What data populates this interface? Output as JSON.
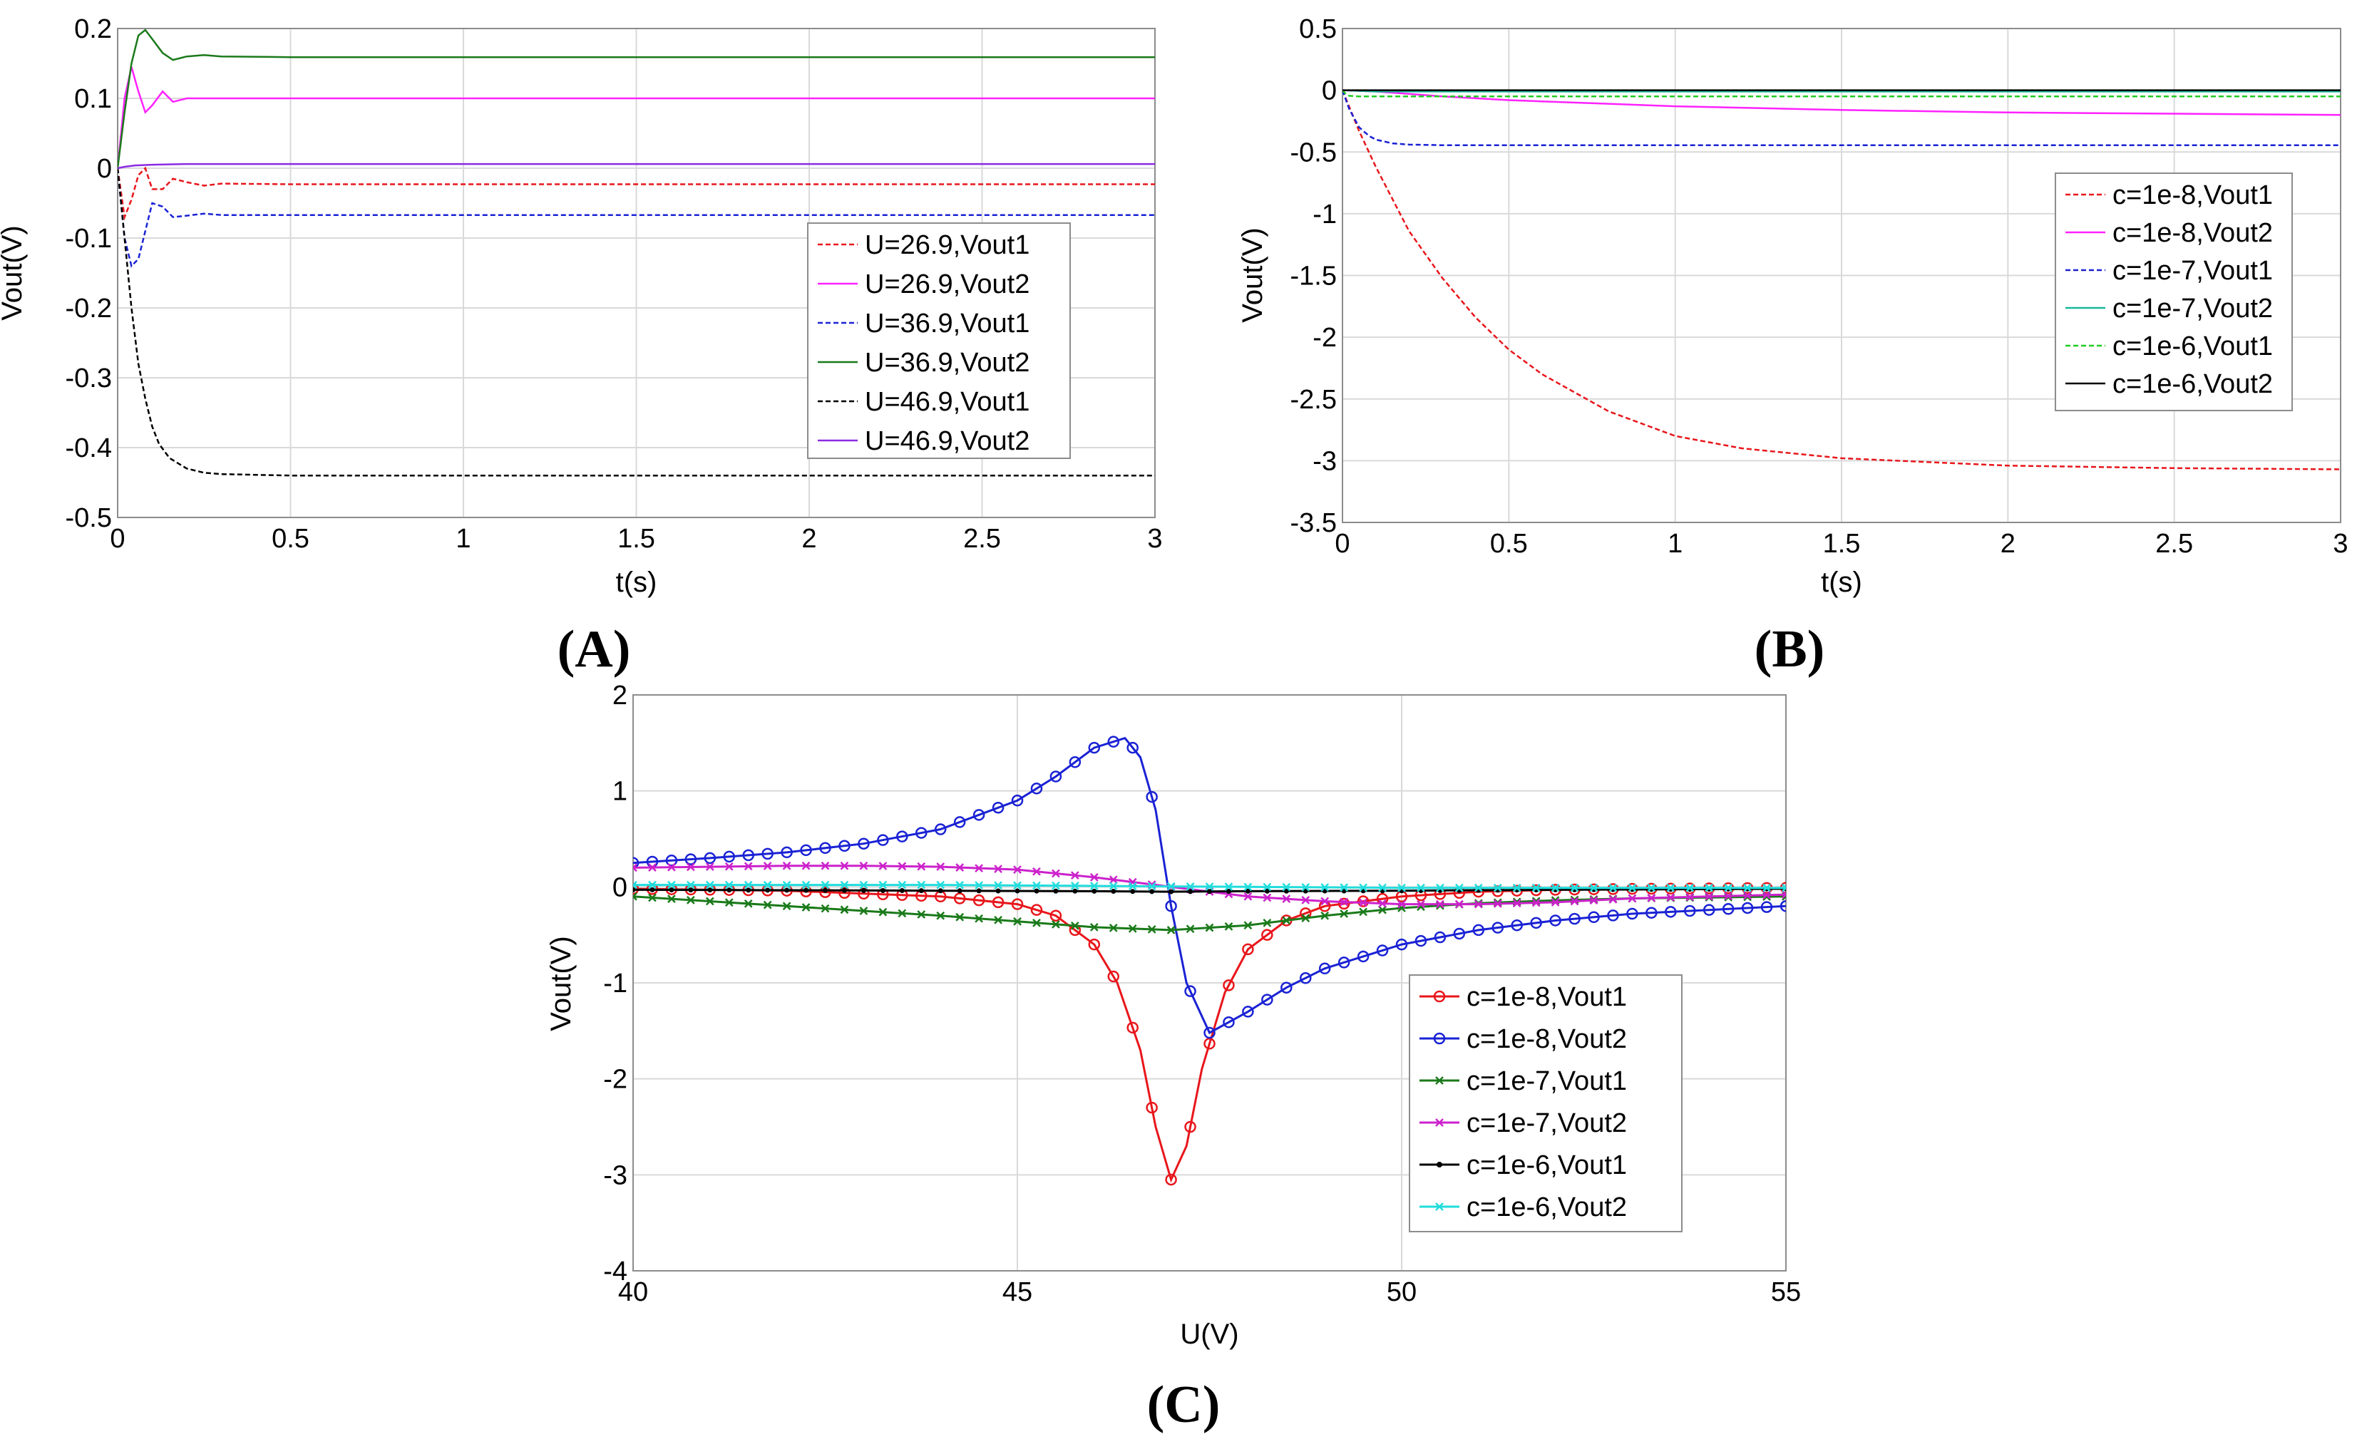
{
  "chart_data": [
    {
      "panel": "A",
      "type": "line",
      "xlabel": "t(s)",
      "ylabel": "Vout(V)",
      "xlim": [
        0,
        3
      ],
      "ylim": [
        -0.5,
        0.2
      ],
      "xticks": [
        0,
        0.5,
        1,
        1.5,
        2,
        2.5,
        3
      ],
      "yticks": [
        -0.5,
        -0.4,
        -0.3,
        -0.2,
        -0.1,
        0,
        0.1,
        0.2
      ],
      "legend_position": "right-center",
      "series": [
        {
          "name": "U=26.9,Vout1",
          "color": "#e8161b",
          "style": "dashed",
          "x": [
            0,
            0.02,
            0.04,
            0.06,
            0.08,
            0.1,
            0.13,
            0.16,
            0.2,
            0.25,
            0.3,
            0.5,
            1,
            2,
            3
          ],
          "y": [
            0,
            -0.07,
            -0.045,
            -0.01,
            0.0,
            -0.03,
            -0.03,
            -0.015,
            -0.02,
            -0.025,
            -0.022,
            -0.023,
            -0.023,
            -0.023,
            -0.023
          ]
        },
        {
          "name": "U=26.9,Vout2",
          "color": "#ff22ff",
          "style": "solid",
          "x": [
            0,
            0.02,
            0.04,
            0.06,
            0.08,
            0.1,
            0.13,
            0.16,
            0.2,
            0.25,
            0.3,
            0.5,
            1,
            2,
            3
          ],
          "y": [
            0,
            0.1,
            0.145,
            0.11,
            0.08,
            0.09,
            0.11,
            0.095,
            0.1,
            0.1,
            0.1,
            0.1,
            0.1,
            0.1,
            0.1
          ]
        },
        {
          "name": "U=36.9,Vout1",
          "color": "#1a22d4",
          "style": "dashed",
          "x": [
            0,
            0.02,
            0.04,
            0.06,
            0.08,
            0.1,
            0.13,
            0.16,
            0.2,
            0.25,
            0.3,
            0.5,
            1,
            2,
            3
          ],
          "y": [
            0,
            -0.1,
            -0.14,
            -0.13,
            -0.09,
            -0.05,
            -0.055,
            -0.07,
            -0.068,
            -0.065,
            -0.067,
            -0.067,
            -0.067,
            -0.067,
            -0.067
          ]
        },
        {
          "name": "U=36.9,Vout2",
          "color": "#1a7a1a",
          "style": "solid",
          "x": [
            0,
            0.02,
            0.04,
            0.06,
            0.08,
            0.1,
            0.13,
            0.16,
            0.2,
            0.25,
            0.3,
            0.5,
            1,
            2,
            3
          ],
          "y": [
            0,
            0.08,
            0.15,
            0.19,
            0.198,
            0.185,
            0.165,
            0.155,
            0.16,
            0.162,
            0.16,
            0.159,
            0.159,
            0.159,
            0.159
          ]
        },
        {
          "name": "U=46.9,Vout1",
          "color": "#000000",
          "style": "dashed",
          "x": [
            0,
            0.02,
            0.04,
            0.06,
            0.08,
            0.1,
            0.12,
            0.15,
            0.2,
            0.25,
            0.3,
            0.4,
            0.5,
            1,
            2,
            3
          ],
          "y": [
            0,
            -0.1,
            -0.2,
            -0.28,
            -0.33,
            -0.37,
            -0.395,
            -0.415,
            -0.43,
            -0.436,
            -0.438,
            -0.439,
            -0.44,
            -0.44,
            -0.44,
            -0.44
          ]
        },
        {
          "name": "U=46.9,Vout2",
          "color": "#8b2be2",
          "style": "solid",
          "x": [
            0,
            0.02,
            0.05,
            0.1,
            0.2,
            0.3,
            0.5,
            1,
            2,
            3
          ],
          "y": [
            0,
            0.002,
            0.004,
            0.005,
            0.006,
            0.006,
            0.006,
            0.006,
            0.006,
            0.006
          ]
        }
      ]
    },
    {
      "panel": "B",
      "type": "line",
      "xlabel": "t(s)",
      "ylabel": "Vout(V)",
      "xlim": [
        0,
        3
      ],
      "ylim": [
        -3.5,
        0.5
      ],
      "xticks": [
        0,
        0.5,
        1,
        1.5,
        2,
        2.5,
        3
      ],
      "yticks": [
        -3.5,
        -3,
        -2.5,
        -2,
        -1.5,
        -1,
        -0.5,
        0,
        0.5
      ],
      "legend_position": "right-center",
      "series": [
        {
          "name": "c=1e-8,Vout1",
          "color": "#e8161b",
          "style": "dashed",
          "x": [
            0,
            0.05,
            0.1,
            0.2,
            0.3,
            0.4,
            0.5,
            0.6,
            0.8,
            1,
            1.2,
            1.5,
            2,
            2.5,
            3
          ],
          "y": [
            0,
            -0.33,
            -0.62,
            -1.14,
            -1.52,
            -1.84,
            -2.1,
            -2.3,
            -2.6,
            -2.8,
            -2.9,
            -2.98,
            -3.04,
            -3.06,
            -3.07
          ]
        },
        {
          "name": "c=1e-8,Vout2",
          "color": "#ff22ff",
          "style": "solid",
          "x": [
            0,
            0.1,
            0.2,
            0.3,
            0.5,
            1,
            1.5,
            2,
            2.5,
            3
          ],
          "y": [
            0,
            -0.01,
            -0.03,
            -0.05,
            -0.08,
            -0.13,
            -0.16,
            -0.18,
            -0.19,
            -0.2
          ]
        },
        {
          "name": "c=1e-7,Vout1",
          "color": "#1a22d4",
          "style": "dashed",
          "x": [
            0,
            0.02,
            0.05,
            0.08,
            0.1,
            0.15,
            0.2,
            0.3,
            0.5,
            1,
            2,
            3
          ],
          "y": [
            0,
            -0.15,
            -0.3,
            -0.37,
            -0.4,
            -0.43,
            -0.44,
            -0.445,
            -0.445,
            -0.445,
            -0.445,
            -0.445
          ]
        },
        {
          "name": "c=1e-7,Vout2",
          "color": "#18b89a",
          "style": "solid",
          "x": [
            0,
            0.1,
            0.3,
            0.5,
            1,
            2,
            3
          ],
          "y": [
            0,
            -0.01,
            -0.01,
            -0.01,
            -0.01,
            -0.01,
            -0.01
          ]
        },
        {
          "name": "c=1e-6,Vout1",
          "color": "#22cc22",
          "style": "dashed",
          "x": [
            0,
            0.01,
            0.02,
            0.05,
            0.1,
            0.5,
            1,
            2,
            3
          ],
          "y": [
            0,
            -0.03,
            -0.045,
            -0.05,
            -0.05,
            -0.05,
            -0.05,
            -0.05,
            -0.05
          ]
        },
        {
          "name": "c=1e-6,Vout2",
          "color": "#000000",
          "style": "solid",
          "x": [
            0,
            0.5,
            1,
            2,
            3
          ],
          "y": [
            0,
            0,
            0,
            0,
            0
          ]
        }
      ]
    },
    {
      "panel": "C",
      "type": "line",
      "xlabel": "U(V)",
      "ylabel": "Vout(V)",
      "xlim": [
        40,
        55
      ],
      "ylim": [
        -4,
        2
      ],
      "xticks": [
        40,
        45,
        50,
        55
      ],
      "yticks": [
        -4,
        -3,
        -2,
        -1,
        0,
        1,
        2
      ],
      "legend_position": "right-bottom",
      "series": [
        {
          "name": "c=1e-8,Vout1",
          "color": "#e8161b",
          "marker": "circle",
          "x": [
            40,
            42,
            44,
            45,
            45.5,
            46,
            46.3,
            46.6,
            46.8,
            47,
            47.2,
            47.4,
            47.7,
            48,
            48.5,
            49,
            50,
            51,
            52,
            53,
            55
          ],
          "y": [
            -0.02,
            -0.04,
            -0.1,
            -0.18,
            -0.3,
            -0.6,
            -1.0,
            -1.7,
            -2.5,
            -3.05,
            -2.7,
            -1.9,
            -1.1,
            -0.65,
            -0.35,
            -0.2,
            -0.1,
            -0.05,
            -0.03,
            -0.02,
            -0.01
          ]
        },
        {
          "name": "c=1e-8,Vout2",
          "color": "#1a22d4",
          "marker": "circle",
          "x": [
            40,
            41,
            42,
            43,
            44,
            45,
            45.5,
            46,
            46.4,
            46.6,
            46.8,
            47,
            47.2,
            47.5,
            48,
            48.5,
            49,
            50,
            51,
            52,
            53,
            55
          ],
          "y": [
            0.25,
            0.3,
            0.36,
            0.45,
            0.6,
            0.9,
            1.15,
            1.45,
            1.55,
            1.35,
            0.8,
            -0.2,
            -1.0,
            -1.52,
            -1.3,
            -1.05,
            -0.85,
            -0.6,
            -0.45,
            -0.35,
            -0.28,
            -0.2
          ]
        },
        {
          "name": "c=1e-7,Vout1",
          "color": "#1a7a1a",
          "marker": "x",
          "x": [
            40,
            42,
            44,
            46,
            47,
            48,
            49,
            50,
            51,
            52,
            53,
            55
          ],
          "y": [
            -0.1,
            -0.2,
            -0.3,
            -0.42,
            -0.45,
            -0.4,
            -0.3,
            -0.22,
            -0.17,
            -0.14,
            -0.12,
            -0.1
          ]
        },
        {
          "name": "c=1e-7,Vout2",
          "color": "#cc22cc",
          "marker": "x",
          "x": [
            40,
            41,
            42,
            43,
            44,
            45,
            46,
            47,
            48,
            49,
            50,
            51,
            52,
            53,
            55
          ],
          "y": [
            0.2,
            0.21,
            0.22,
            0.22,
            0.21,
            0.18,
            0.1,
            0.0,
            -0.1,
            -0.15,
            -0.18,
            -0.18,
            -0.16,
            -0.12,
            -0.08
          ]
        },
        {
          "name": "c=1e-6,Vout1",
          "color": "#000000",
          "marker": "dot",
          "x": [
            40,
            42,
            44,
            46,
            47,
            48,
            50,
            52,
            55
          ],
          "y": [
            -0.03,
            -0.035,
            -0.04,
            -0.045,
            -0.05,
            -0.045,
            -0.04,
            -0.03,
            -0.02
          ]
        },
        {
          "name": "c=1e-6,Vout2",
          "color": "#22dddd",
          "marker": "x",
          "x": [
            40,
            42,
            44,
            46,
            48,
            50,
            52,
            55
          ],
          "y": [
            0.02,
            0.02,
            0.02,
            0.01,
            0.0,
            -0.01,
            -0.01,
            -0.01
          ]
        }
      ]
    }
  ],
  "panel_labels": [
    "(A)",
    "(B)",
    "(C)"
  ]
}
